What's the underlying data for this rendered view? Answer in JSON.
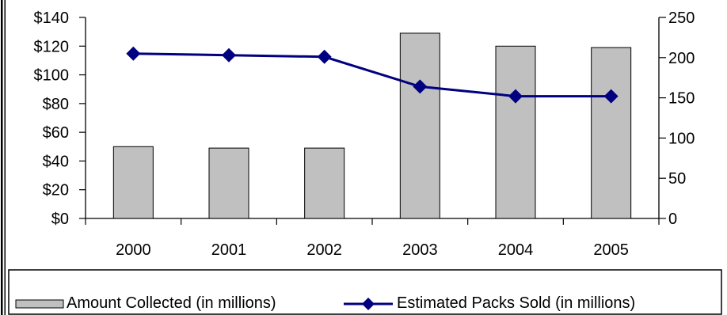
{
  "chart_data": {
    "type": "bar+line",
    "categories": [
      "2000",
      "2001",
      "2002",
      "2003",
      "2004",
      "2005"
    ],
    "series": [
      {
        "name": "Amount Collected (in millions)",
        "type": "bar",
        "axis": "left",
        "values": [
          50,
          49,
          49,
          129,
          120,
          119
        ],
        "color": "#c0c0c0"
      },
      {
        "name": "Estimated Packs Sold (in millions)",
        "type": "line",
        "axis": "right",
        "marker": "diamond",
        "values": [
          205,
          203,
          201,
          164,
          152,
          152
        ],
        "color": "#000080"
      }
    ],
    "y_left": {
      "ylim": [
        0,
        140
      ],
      "ticks": [
        0,
        20,
        40,
        60,
        80,
        100,
        120,
        140
      ],
      "tick_labels": [
        "$0",
        "$20",
        "$40",
        "$60",
        "$80",
        "$100",
        "$120",
        "$140"
      ]
    },
    "y_right": {
      "ylim": [
        0,
        250
      ],
      "ticks": [
        0,
        50,
        100,
        150,
        200,
        250
      ],
      "tick_labels": [
        "0",
        "50",
        "100",
        "150",
        "200",
        "250"
      ]
    },
    "grid": false,
    "legend": "bottom"
  }
}
